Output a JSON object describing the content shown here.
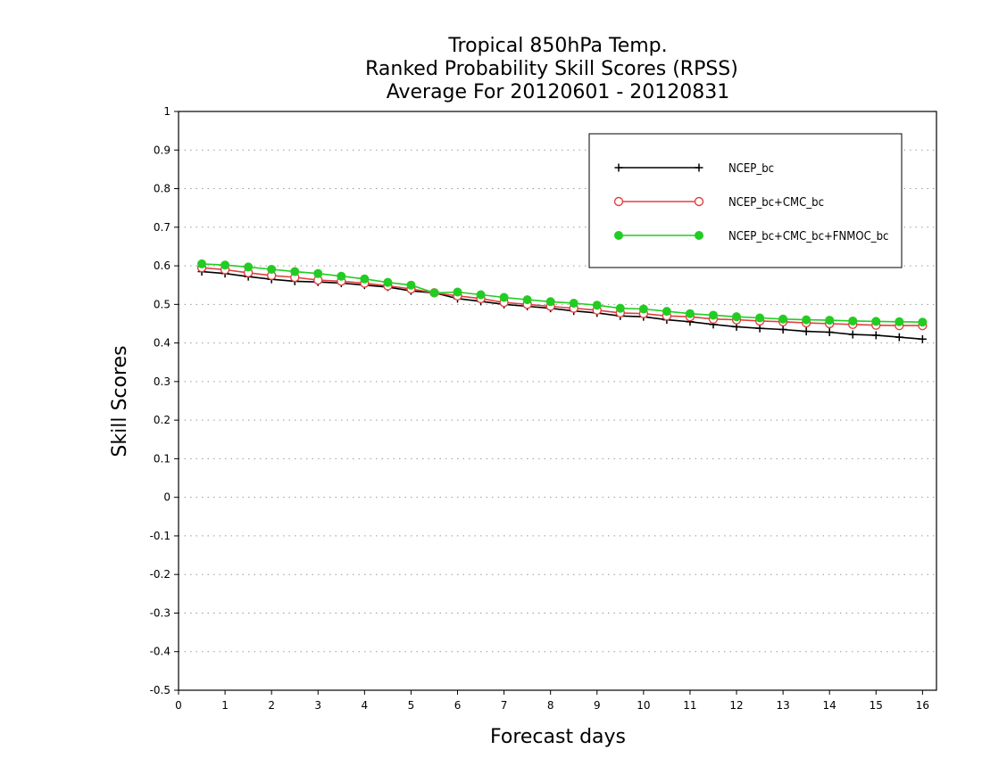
{
  "chart_data": {
    "type": "line",
    "title_lines": [
      "Tropical 850hPa Temp.",
      "Ranked Probability Skill Scores (RPSS)",
      "Average For 20120601 - 20120831"
    ],
    "xlabel": "Forecast days",
    "ylabel": "Skill Scores",
    "xlim": [
      0,
      16.3
    ],
    "ylim": [
      -0.5,
      1
    ],
    "xticks": [
      0,
      1,
      2,
      3,
      4,
      5,
      6,
      7,
      8,
      9,
      10,
      11,
      12,
      13,
      14,
      15,
      16
    ],
    "yticks": [
      -0.5,
      -0.4,
      -0.3,
      -0.2,
      -0.1,
      0,
      0.1,
      0.2,
      0.3,
      0.4,
      0.5,
      0.6,
      0.7,
      0.8,
      0.9,
      1
    ],
    "ytick_labels": [
      "-0.5",
      "-0.4",
      "-0.3",
      "-0.2",
      "-0.1",
      "0",
      "0.1",
      "0.2",
      "0.3",
      "0.4",
      "0.5",
      "0.6",
      "0.7",
      "0.8",
      "0.9",
      "1"
    ],
    "grid": "horizontal dotted",
    "legend_position": "top-right",
    "x": [
      0.5,
      1,
      1.5,
      2,
      2.5,
      3,
      3.5,
      4,
      4.5,
      5,
      5.5,
      6,
      6.5,
      7,
      7.5,
      8,
      8.5,
      9,
      9.5,
      10,
      10.5,
      11,
      11.5,
      12,
      12.5,
      13,
      13.5,
      14,
      14.5,
      15,
      15.5,
      16
    ],
    "series": [
      {
        "name": "NCEP_bc",
        "color": "#000000",
        "marker": "plus",
        "values": [
          0.585,
          0.58,
          0.572,
          0.565,
          0.56,
          0.558,
          0.555,
          0.55,
          0.545,
          0.535,
          0.53,
          0.515,
          0.508,
          0.5,
          0.495,
          0.49,
          0.483,
          0.478,
          0.47,
          0.468,
          0.46,
          0.455,
          0.448,
          0.442,
          0.438,
          0.435,
          0.43,
          0.428,
          0.422,
          0.42,
          0.415,
          0.41
        ]
      },
      {
        "name": "NCEP_bc+CMC_bc",
        "color": "#e04040",
        "marker": "open-circle",
        "values": [
          0.595,
          0.59,
          0.582,
          0.575,
          0.57,
          0.563,
          0.56,
          0.555,
          0.548,
          0.54,
          0.53,
          0.522,
          0.515,
          0.505,
          0.5,
          0.495,
          0.49,
          0.485,
          0.478,
          0.476,
          0.47,
          0.468,
          0.462,
          0.46,
          0.457,
          0.455,
          0.452,
          0.45,
          0.448,
          0.446,
          0.445,
          0.445
        ]
      },
      {
        "name": "NCEP_bc+CMC_bc+FNMOC_bc",
        "color": "#22cc22",
        "marker": "filled-circle",
        "values": [
          0.605,
          0.602,
          0.597,
          0.591,
          0.585,
          0.58,
          0.573,
          0.566,
          0.557,
          0.55,
          0.53,
          0.532,
          0.525,
          0.518,
          0.512,
          0.507,
          0.503,
          0.498,
          0.49,
          0.488,
          0.482,
          0.476,
          0.472,
          0.468,
          0.465,
          0.462,
          0.46,
          0.459,
          0.457,
          0.456,
          0.455,
          0.454
        ]
      }
    ]
  }
}
